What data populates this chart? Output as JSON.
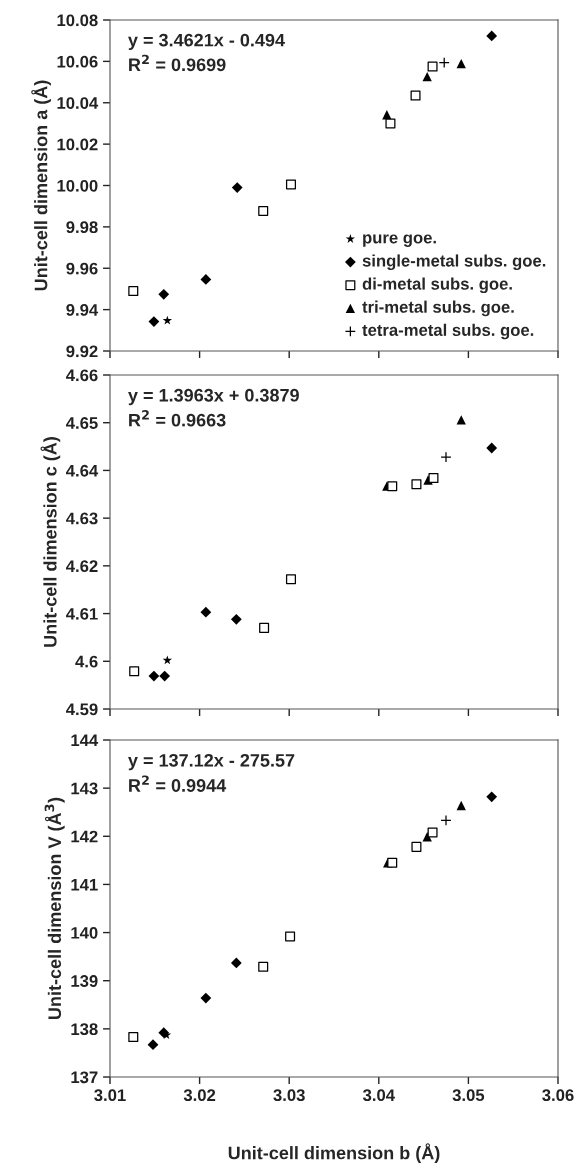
{
  "chart_data": [
    {
      "type": "scatter",
      "ylabel": "Unit-cell dimension a (Å)",
      "annotations": [
        "y = 3.4621x - 0.494",
        "R$^{2}$ = 0.9699"
      ],
      "xlim": [
        3.01,
        3.06
      ],
      "xticks": [
        3.01,
        3.02,
        3.03,
        3.04,
        3.05,
        3.06
      ],
      "ylim": [
        9.92,
        10.08
      ],
      "yticks": [
        {
          "value": 9.92,
          "label": "9.92"
        },
        {
          "value": 9.94,
          "label": "9.94"
        },
        {
          "value": 9.96,
          "label": "9.96"
        },
        {
          "value": 9.98,
          "label": "9.98"
        },
        {
          "value": 10.0,
          "label": "10.00"
        },
        {
          "value": 10.02,
          "label": "10.02"
        },
        {
          "value": 10.04,
          "label": "10.04"
        },
        {
          "value": 10.06,
          "label": "10.06"
        },
        {
          "value": 10.08,
          "label": "10.08"
        }
      ],
      "tick_labels": "y",
      "grid": false,
      "legend": "bottom right",
      "series": [
        {
          "name": "pure goe.",
          "color": "#000000",
          "marker": "star",
          "x": [
            3.0164
          ],
          "values": [
            9.9347
          ]
        },
        {
          "name": "single-metal subs. goe.",
          "color": "#000000",
          "marker": "diamond",
          "x": [
            3.0149,
            3.016,
            3.0207,
            3.0242,
            3.0526
          ],
          "values": [
            9.9342,
            9.9474,
            9.9546,
            9.999,
            10.0723
          ]
        },
        {
          "name": "di-metal subs. goe.",
          "color": "#000000",
          "marker": "square",
          "x": [
            3.0126,
            3.0271,
            3.0302,
            3.0413,
            3.0441,
            3.046
          ],
          "values": [
            9.949,
            9.9877,
            10.0005,
            10.03,
            10.0435,
            10.0575
          ]
        },
        {
          "name": "tri-metal subs. goe.",
          "color": "#000000",
          "marker": "triangle",
          "x": [
            3.0409,
            3.0454,
            3.0492
          ],
          "values": [
            10.0342,
            10.0526,
            10.0589
          ]
        },
        {
          "name": "tetra-metal subs. goe.",
          "color": "#000000",
          "marker": "cross",
          "x": [
            3.0473
          ],
          "values": [
            10.0594
          ]
        }
      ]
    },
    {
      "type": "scatter",
      "ylabel": "Unit-cell dimension c (Å)",
      "annotations": [
        "y = 1.3963x + 0.3879",
        "R$^{2}$ = 0.9663"
      ],
      "xlim": [
        3.01,
        3.06
      ],
      "xticks": [
        3.01,
        3.02,
        3.03,
        3.04,
        3.05,
        3.06
      ],
      "ylim": [
        4.59,
        4.66
      ],
      "yticks": [
        4.59,
        4.6,
        4.61,
        4.62,
        4.63,
        4.64,
        4.65,
        4.66
      ],
      "tick_labels": "y",
      "grid": false,
      "series": [
        {
          "color": "#000000",
          "marker": "star",
          "x": [
            3.0164
          ],
          "values": [
            4.6002
          ]
        },
        {
          "color": "#000000",
          "marker": "diamond",
          "x": [
            3.0149,
            3.0161,
            3.0207,
            3.0241,
            3.0526
          ],
          "values": [
            4.5969,
            4.5969,
            4.6103,
            4.6088,
            4.6447
          ]
        },
        {
          "color": "#000000",
          "marker": "square",
          "x": [
            3.0127,
            3.0272,
            3.0302,
            3.0415,
            3.0442,
            3.0461
          ],
          "values": [
            4.5979,
            4.607,
            4.6172,
            4.6367,
            4.6371,
            4.6384
          ]
        },
        {
          "color": "#000000",
          "marker": "triangle",
          "x": [
            3.0409,
            3.0455,
            3.0492
          ],
          "values": [
            4.6367,
            4.638,
            4.6506
          ]
        },
        {
          "color": "#000000",
          "marker": "cross",
          "x": [
            3.0475
          ],
          "values": [
            4.6428
          ]
        }
      ]
    },
    {
      "type": "scatter",
      "xlabel": "Unit-cell dimension b (Å)",
      "ylabel": "Unit-cell dimension V (Å$^{3}$)",
      "annotations": [
        "y = 137.12x - 275.57",
        "R$^{2}$ = 0.9944"
      ],
      "xlim": [
        3.01,
        3.06
      ],
      "xticks": [
        3.01,
        3.02,
        3.03,
        3.04,
        3.05,
        3.06
      ],
      "ylim": [
        137,
        144
      ],
      "yticks": [
        137,
        138,
        139,
        140,
        141,
        142,
        143,
        144
      ],
      "grid": false,
      "series": [
        {
          "color": "#000000",
          "marker": "star",
          "x": [
            3.0163
          ],
          "values": [
            137.87
          ]
        },
        {
          "color": "#000000",
          "marker": "diamond",
          "x": [
            3.0148,
            3.016,
            3.0207,
            3.0241,
            3.0526
          ],
          "values": [
            137.67,
            137.92,
            138.64,
            139.37,
            142.82
          ]
        },
        {
          "color": "#000000",
          "marker": "square",
          "x": [
            3.0126,
            3.0271,
            3.0301,
            3.0415,
            3.0442,
            3.046
          ],
          "values": [
            137.83,
            139.29,
            139.92,
            141.45,
            141.78,
            142.08
          ]
        },
        {
          "color": "#000000",
          "marker": "triangle",
          "x": [
            3.041,
            3.0454,
            3.0492
          ],
          "values": [
            141.45,
            141.99,
            142.64
          ]
        },
        {
          "color": "#000000",
          "marker": "cross",
          "x": [
            3.0475
          ],
          "values": [
            142.33
          ]
        }
      ]
    }
  ]
}
